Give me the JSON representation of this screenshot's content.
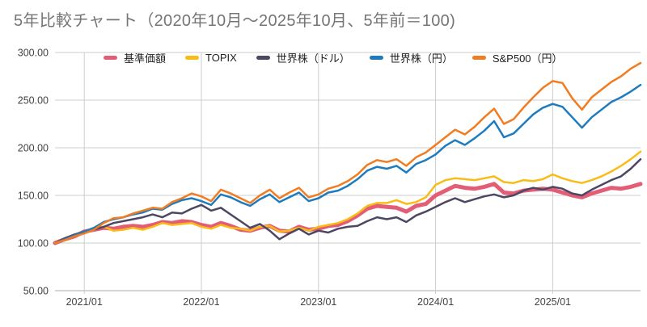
{
  "title": "5年比較チャート（2020年10月〜2025年10月、5年前＝100)",
  "colors": {
    "background": "#ffffff",
    "title_text": "#757575",
    "axis_text": "#424242",
    "legend_text": "#212121",
    "gridline": "#cccccc",
    "axis_line": "#ababab",
    "series_kijun": "#E35D76",
    "series_topix": "#F9BC16",
    "series_world_usd": "#4D4763",
    "series_world_jpy": "#1E7CBE",
    "series_sp500_jpy": "#F17C21"
  },
  "chart_data": {
    "type": "line",
    "title": "5年比較チャート（2020年10月〜2025年10月、5年前＝100)",
    "x_start": "2020/10",
    "x_end": "2025/10",
    "x_monthly_points": 61,
    "x_tick_labels": [
      "2021/01",
      "2022/01",
      "2023/01",
      "2024/01",
      "2025/01"
    ],
    "x_tick_month_index": [
      3,
      15,
      27,
      39,
      51
    ],
    "y_ticks": [
      "50.00",
      "100.00",
      "150.00",
      "200.00",
      "250.00",
      "300.00"
    ],
    "ylim": [
      50,
      300
    ],
    "grid": true,
    "legend_position": "top",
    "baseline_note": "5年前＝100",
    "series": [
      {
        "name": "基準価額",
        "color": "#E35D76",
        "width": 5,
        "values": [
          100,
          104,
          107,
          112,
          114,
          116,
          115,
          117,
          118,
          117,
          119,
          122,
          121,
          123,
          122,
          119,
          117,
          121,
          118,
          114,
          113,
          116,
          118,
          113,
          112,
          117,
          114,
          115,
          118,
          119,
          123,
          129,
          136,
          139,
          138,
          137,
          133,
          139,
          141,
          150,
          155,
          160,
          158,
          157,
          159,
          162,
          153,
          152,
          155,
          156,
          157,
          156,
          153,
          150,
          148,
          152,
          155,
          158,
          157,
          159,
          162
        ]
      },
      {
        "name": "TOPIX",
        "color": "#F9BC16",
        "width": 2.5,
        "values": [
          100,
          105,
          108,
          111,
          114,
          117,
          113,
          114,
          116,
          114,
          117,
          121,
          119,
          120,
          121,
          117,
          115,
          119,
          116,
          115,
          113,
          117,
          118,
          112,
          113,
          116,
          113,
          117,
          119,
          121,
          125,
          131,
          139,
          142,
          142,
          145,
          141,
          143,
          148,
          161,
          166,
          168,
          167,
          166,
          168,
          170,
          164,
          163,
          166,
          165,
          167,
          172,
          168,
          165,
          163,
          166,
          170,
          175,
          181,
          188,
          196
        ]
      },
      {
        "name": "世界株（ドル）",
        "color": "#4D4763",
        "width": 2.5,
        "values": [
          100,
          105,
          109,
          112,
          114,
          117,
          121,
          123,
          125,
          127,
          130,
          127,
          132,
          131,
          136,
          140,
          134,
          137,
          130,
          123,
          116,
          120,
          113,
          104,
          110,
          115,
          109,
          113,
          111,
          115,
          117,
          118,
          123,
          127,
          125,
          127,
          122,
          129,
          133,
          138,
          143,
          147,
          143,
          146,
          149,
          151,
          148,
          150,
          155,
          158,
          156,
          159,
          157,
          152,
          150,
          156,
          161,
          166,
          170,
          178,
          188
        ]
      },
      {
        "name": "世界株（円）",
        "color": "#1E7CBE",
        "width": 2.5,
        "values": [
          100,
          104,
          108,
          112,
          116,
          122,
          125,
          127,
          130,
          132,
          136,
          135,
          141,
          145,
          147,
          144,
          140,
          151,
          148,
          143,
          139,
          146,
          151,
          143,
          148,
          153,
          144,
          147,
          153,
          155,
          160,
          167,
          176,
          180,
          178,
          181,
          174,
          183,
          187,
          193,
          202,
          208,
          203,
          210,
          218,
          228,
          211,
          215,
          225,
          235,
          242,
          246,
          243,
          232,
          221,
          232,
          240,
          248,
          253,
          259,
          266
        ]
      },
      {
        "name": "S&P500（円）",
        "color": "#F17C21",
        "width": 2.5,
        "values": [
          100,
          103,
          107,
          110,
          114,
          121,
          126,
          127,
          131,
          134,
          137,
          136,
          143,
          147,
          152,
          149,
          144,
          156,
          152,
          147,
          142,
          150,
          156,
          147,
          153,
          158,
          148,
          151,
          157,
          160,
          165,
          172,
          182,
          187,
          185,
          188,
          181,
          190,
          195,
          203,
          211,
          219,
          214,
          222,
          232,
          241,
          225,
          230,
          242,
          253,
          263,
          270,
          268,
          252,
          240,
          253,
          261,
          269,
          275,
          283,
          289
        ]
      }
    ]
  }
}
